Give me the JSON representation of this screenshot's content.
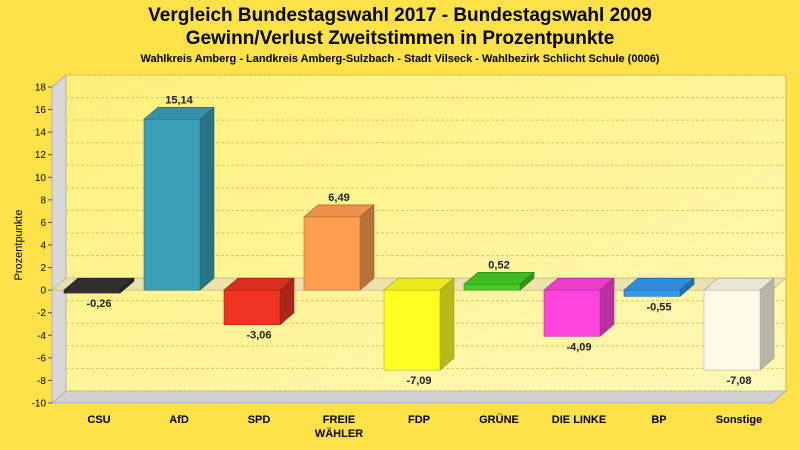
{
  "chart_data": {
    "type": "bar",
    "title": "Vergleich Bundestagswahl 2017 - Bundestagswahl 2009",
    "title2": "Gewinn/Verlust Zweitstimmen in Prozentpunkte",
    "subtitle": "Wahlkreis Amberg - Landkreis Amberg-Sulzbach - Stadt Vilseck - Wahlbezirk Schlicht Schule (0006)",
    "xlabel": "",
    "ylabel": "Prozentpunkte",
    "ylim": [
      -10,
      18
    ],
    "yticks": [
      -10,
      -8,
      -6,
      -4,
      -2,
      0,
      2,
      4,
      6,
      8,
      10,
      12,
      14,
      16,
      18
    ],
    "grid": true,
    "categories": [
      "CSU",
      "AfD",
      "SPD",
      "FREIE\nWÄHLER",
      "FDP",
      "GRÜNE",
      "DIE LINKE",
      "BP",
      "Sonstige"
    ],
    "values": [
      -0.26,
      15.14,
      -3.06,
      6.49,
      -7.09,
      0.52,
      -4.09,
      -0.55,
      -7.08
    ],
    "value_labels": [
      "-0,26",
      "15,14",
      "-3,06",
      "6,49",
      "-7,09",
      "0,52",
      "-4,09",
      "-0,55",
      "-7,08"
    ],
    "colors": [
      "#333333",
      "#3aa0b8",
      "#ee3322",
      "#ff9e50",
      "#ffff22",
      "#44cc22",
      "#ff44dd",
      "#3399ee",
      "#fffbe6"
    ]
  }
}
